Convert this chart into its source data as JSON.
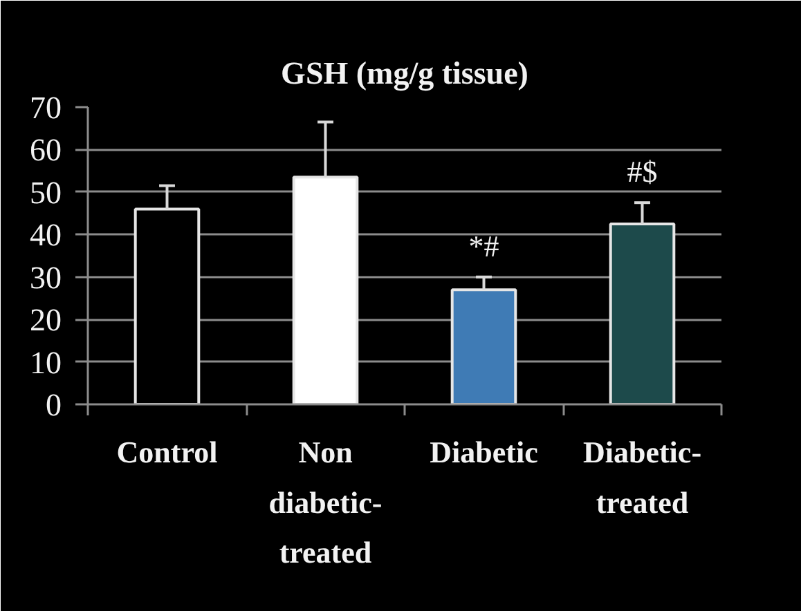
{
  "chart_data": {
    "type": "bar",
    "title": "GSH (mg/g tissue)",
    "categories": [
      "Control",
      "Non diabetic-treated",
      "Diabetic",
      "Diabetic-treated"
    ],
    "values": [
      46,
      53.5,
      27,
      42.5
    ],
    "colors": [
      "#000000",
      "#ffffff",
      "#3f7bb5",
      "#1d4a4b"
    ],
    "errors": [
      [
        46,
        51.5
      ],
      [
        53.5,
        66.5
      ],
      [
        27,
        30
      ],
      [
        42.5,
        47.5
      ]
    ],
    "ylim": [
      0,
      70
    ],
    "yticks": [
      0,
      10,
      20,
      30,
      40,
      50,
      60,
      70
    ],
    "grid": "y",
    "annotations": [
      {
        "text": "*#",
        "x": "Diabetic",
        "y": 27
      },
      {
        "text": "#$",
        "x": "Diabetic-treated",
        "y": 42.5
      }
    ]
  }
}
